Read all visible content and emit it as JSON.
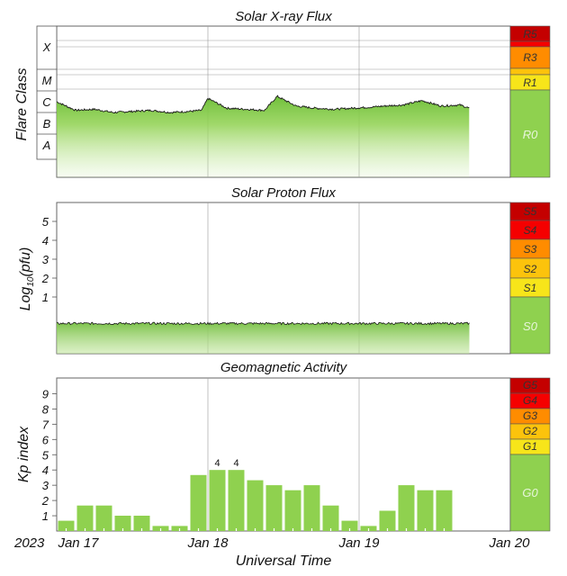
{
  "colors": {
    "green": "#8fd14f",
    "fill_top": "#7cc24a",
    "yellow": "#f7e51a",
    "gold": "#fcc30c",
    "orange": "#ff8c00",
    "red": "#f50000",
    "darkred": "#c40000"
  },
  "xaxis": {
    "year": "2023",
    "ticks": [
      "Jan 17",
      "Jan 18",
      "Jan 19",
      "Jan 20"
    ],
    "label": "Universal Time"
  },
  "xray": {
    "title": "Solar X-ray Flux",
    "ylabel": "Flare Class",
    "classes": [
      "X",
      "M",
      "C",
      "B",
      "A"
    ],
    "scale": [
      {
        "label": "R5",
        "color": "#c40000"
      },
      {
        "label": "R3",
        "color": "#ff8c00"
      },
      {
        "label": "R1",
        "color": "#f7e51a"
      },
      {
        "label": "R0",
        "color": "#8fd14f"
      }
    ]
  },
  "proton": {
    "title": "Solar Proton Flux",
    "ylabel_main": "Log",
    "ylabel_sub": "10",
    "ylabel_tail": "(pfu)",
    "ticks": [
      "1",
      "2",
      "3",
      "4",
      "5"
    ],
    "scale": [
      {
        "label": "S5",
        "color": "#c40000"
      },
      {
        "label": "S4",
        "color": "#f50000"
      },
      {
        "label": "S3",
        "color": "#ff8c00"
      },
      {
        "label": "S2",
        "color": "#fcc30c"
      },
      {
        "label": "S1",
        "color": "#f7e51a"
      },
      {
        "label": "S0",
        "color": "#8fd14f"
      }
    ]
  },
  "geomag": {
    "title": "Geomagnetic Activity",
    "ylabel": "Kp index",
    "ticks": [
      "1",
      "2",
      "3",
      "4",
      "5",
      "6",
      "7",
      "8",
      "9"
    ],
    "scale": [
      {
        "label": "G5",
        "color": "#c40000"
      },
      {
        "label": "G4",
        "color": "#f50000"
      },
      {
        "label": "G3",
        "color": "#ff8c00"
      },
      {
        "label": "G2",
        "color": "#fcc30c"
      },
      {
        "label": "G1",
        "color": "#f7e51a"
      },
      {
        "label": "G0",
        "color": "#8fd14f"
      }
    ]
  },
  "chart_data": [
    {
      "type": "area",
      "title": "Solar X-ray Flux",
      "ylabel": "Flare Class",
      "xlabel": "Universal Time",
      "y_scale": "log",
      "y_categories": [
        "A",
        "B",
        "C",
        "M",
        "X"
      ],
      "x_range": [
        "2023-01-17",
        "2023-01-20"
      ],
      "series": [
        {
          "x": [
            "2023-01-17 00:00",
            "2023-01-17 03:00",
            "2023-01-17 06:00",
            "2023-01-17 09:00",
            "2023-01-17 12:00",
            "2023-01-17 15:00",
            "2023-01-17 18:00",
            "2023-01-17 21:00",
            "2023-01-17 23:00",
            "2023-01-18 00:00",
            "2023-01-18 03:00",
            "2023-01-18 06:00",
            "2023-01-18 09:00",
            "2023-01-18 11:00",
            "2023-01-18 14:00",
            "2023-01-18 17:00",
            "2023-01-18 20:00",
            "2023-01-18 23:00",
            "2023-01-19 02:00",
            "2023-01-19 04:00",
            "2023-01-19 07:00",
            "2023-01-19 10:00",
            "2023-01-19 13:00",
            "2023-01-19 16:00",
            "2023-01-19 17:30"
          ],
          "class_level": [
            2.5,
            2.1,
            2.15,
            2.0,
            2.05,
            2.1,
            2.0,
            2.05,
            2.1,
            2.65,
            2.2,
            2.15,
            2.1,
            2.75,
            2.3,
            2.2,
            2.15,
            2.2,
            2.25,
            2.3,
            2.35,
            2.55,
            2.3,
            2.35,
            2.2
          ]
        }
      ]
    },
    {
      "type": "area",
      "title": "Solar Proton Flux",
      "ylabel": "Log10(pfu)",
      "xlabel": "Universal Time",
      "ylim": [
        -1,
        6
      ],
      "x_range": [
        "2023-01-17",
        "2023-01-20"
      ],
      "series": [
        {
          "x": [
            "2023-01-17 00:00",
            "2023-01-19 17:30"
          ],
          "values": [
            -0.4,
            -0.4
          ]
        }
      ]
    },
    {
      "type": "bar",
      "title": "Geomagnetic Activity",
      "ylabel": "Kp index",
      "xlabel": "Universal Time",
      "ylim": [
        0,
        9.67
      ],
      "x_range": [
        "2023-01-17",
        "2023-01-20"
      ],
      "bar_interval_hours": 3,
      "values": [
        0.67,
        1.67,
        1.67,
        1.0,
        1.0,
        0.33,
        0.33,
        3.67,
        4.0,
        4.0,
        3.33,
        3.0,
        2.67,
        3.0,
        1.67,
        0.67,
        0.33,
        1.33,
        3.0,
        2.67,
        2.67
      ],
      "bar_labels": {
        "8": "4",
        "9": "4"
      }
    }
  ]
}
